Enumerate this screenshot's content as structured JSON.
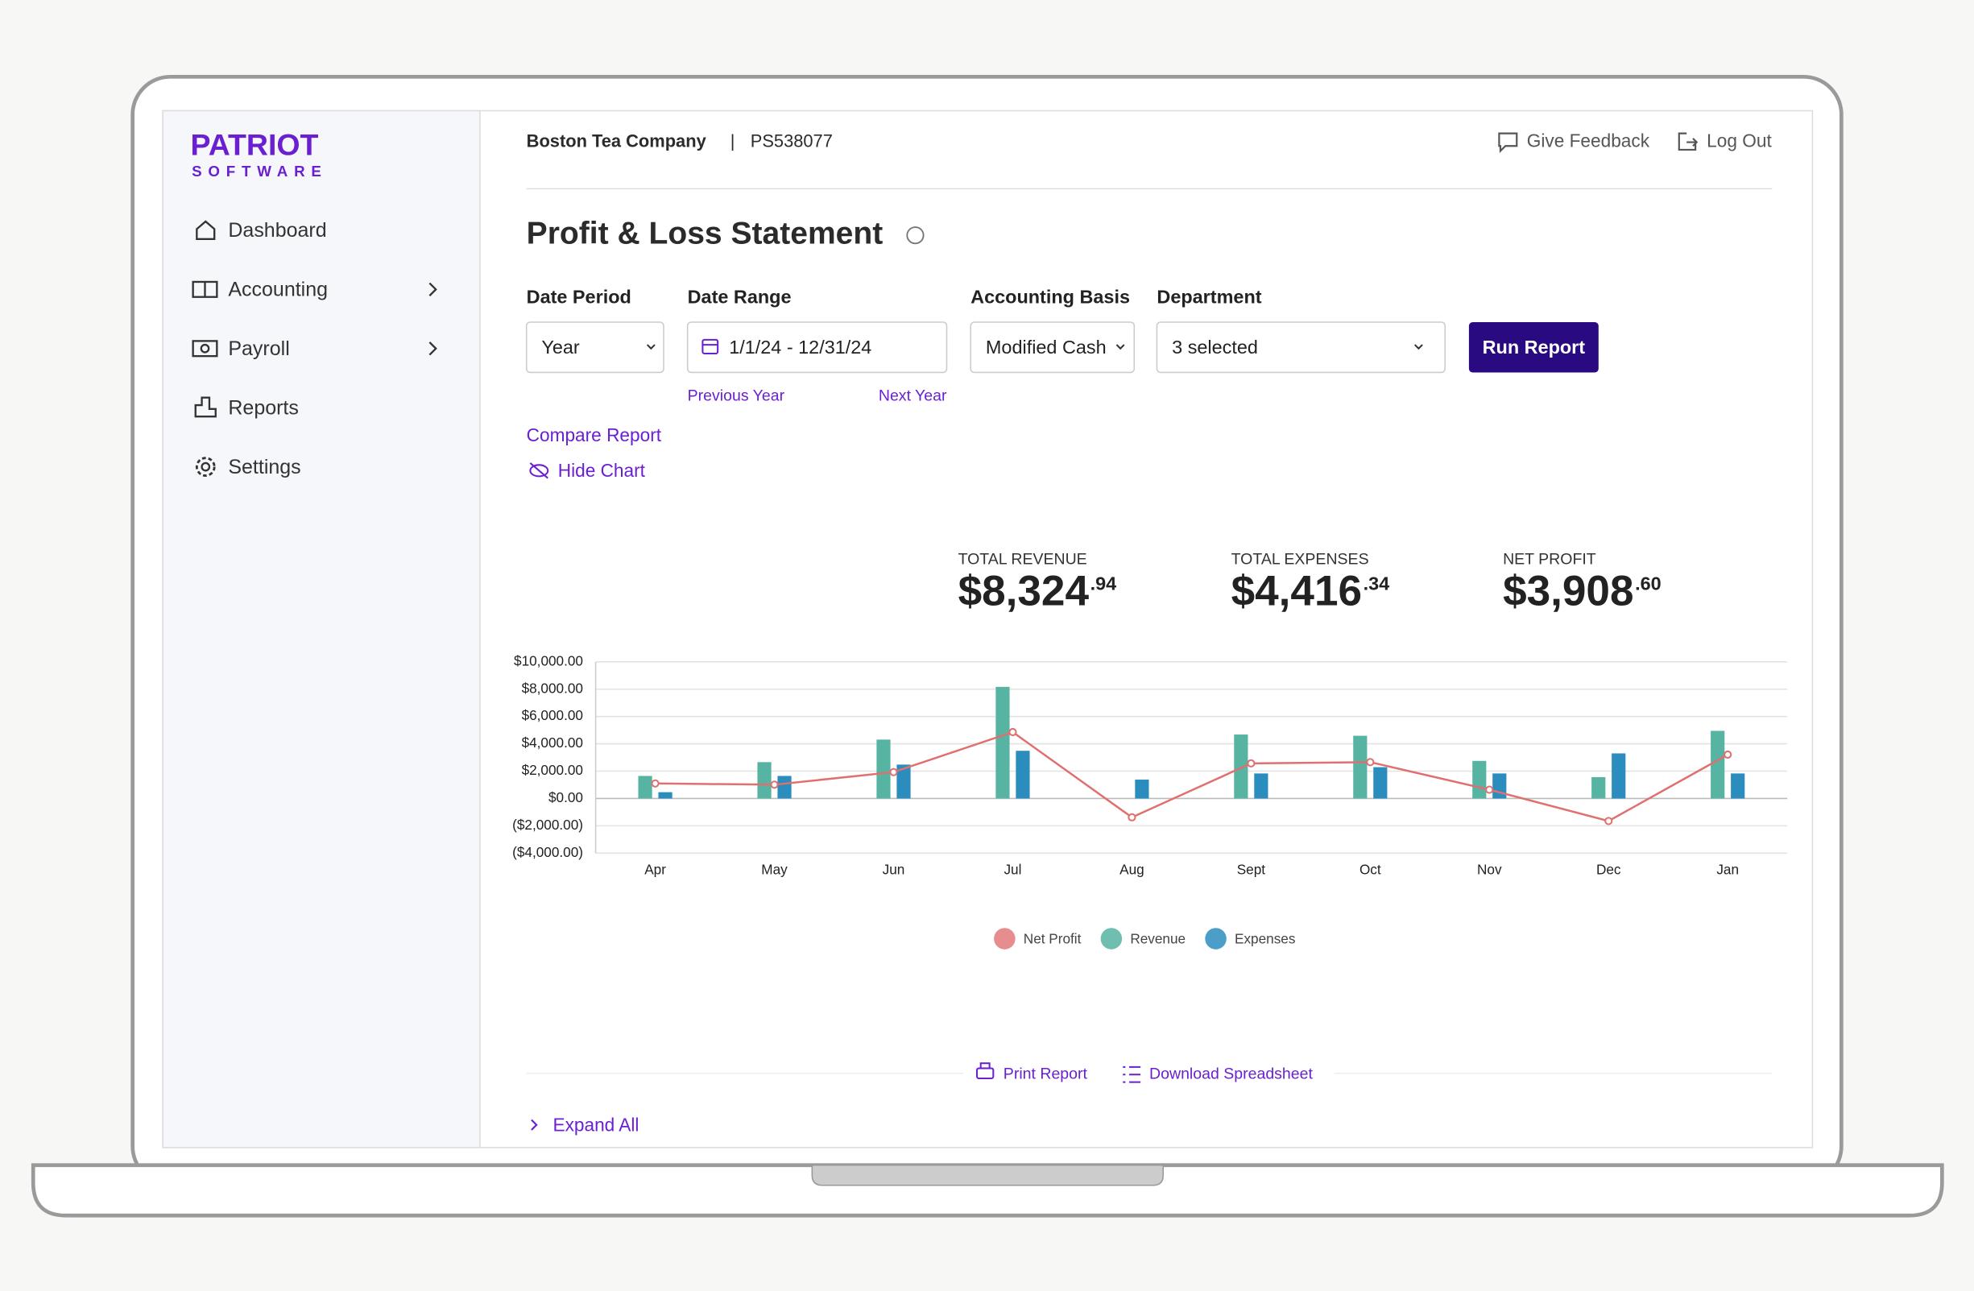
{
  "brand": {
    "name": "PATRIOT",
    "tagline": "SOFTWARE"
  },
  "nav": [
    "Dashboard",
    "Accounting",
    "Payroll",
    "Reports",
    "Settings"
  ],
  "header": {
    "company": "Boston Tea Company",
    "separator": "|",
    "account": "PS538077",
    "feedback": "Give Feedback",
    "logout": "Log Out"
  },
  "page_title": "Profit & Loss Statement",
  "filters": {
    "date_period": {
      "label": "Date Period",
      "value": "Year"
    },
    "date_range": {
      "label": "Date Range",
      "value": "1/1/24 - 12/31/24",
      "previous": "Previous Year",
      "next": "Next Year"
    },
    "accounting_basis": {
      "label": "Accounting Basis",
      "value": "Modified Cash"
    },
    "department": {
      "label": "Department",
      "value": "3 selected"
    },
    "run": "Run Report"
  },
  "links": {
    "compare": "Compare Report",
    "hide_chart": "Hide Chart"
  },
  "summary": [
    {
      "label": "TOTAL REVENUE",
      "whole": "$8,324",
      "cents": ".94"
    },
    {
      "label": "TOTAL EXPENSES",
      "whole": "$4,416",
      "cents": ".34"
    },
    {
      "label": "NET PROFIT",
      "whole": "$3,908",
      "cents": ".60"
    }
  ],
  "chart_data": {
    "type": "bar",
    "categories": [
      "Apr",
      "May",
      "Jun",
      "Jul",
      "Aug",
      "Sept",
      "Oct",
      "Nov",
      "Dec",
      "Jan"
    ],
    "series": [
      {
        "name": "Net Profit",
        "type": "line",
        "color": "#e07070",
        "values": [
          1100,
          1010,
          1930,
          4860,
          -1380,
          2570,
          2660,
          640,
          -1650,
          3210
        ]
      },
      {
        "name": "Revenue",
        "color": "#57b3a2",
        "values": [
          1650,
          2660,
          4310,
          8170,
          0,
          4680,
          4590,
          2750,
          1560,
          4950
        ]
      },
      {
        "name": "Expenses",
        "color": "#2a8dbd",
        "values": [
          460,
          1650,
          2480,
          3490,
          1380,
          1830,
          2290,
          1830,
          3300,
          1830
        ]
      }
    ],
    "ylim": [
      -4000,
      10000
    ],
    "yticks": [
      {
        "value": -4000,
        "label": "($4,000.00)"
      },
      {
        "value": -2000,
        "label": "($2,000.00)"
      },
      {
        "value": 0,
        "label": "$0.00"
      },
      {
        "value": 2000,
        "label": "$2,000.00"
      },
      {
        "value": 4000,
        "label": "$4,000.00"
      },
      {
        "value": 6000,
        "label": "$6,000.00"
      },
      {
        "value": 8000,
        "label": "$8,000.00"
      },
      {
        "value": 10000,
        "label": "$10,000.00"
      }
    ],
    "grid": true
  },
  "footer": {
    "print": "Print Report",
    "download": "Download Spreadsheet",
    "expand": "Expand All"
  }
}
